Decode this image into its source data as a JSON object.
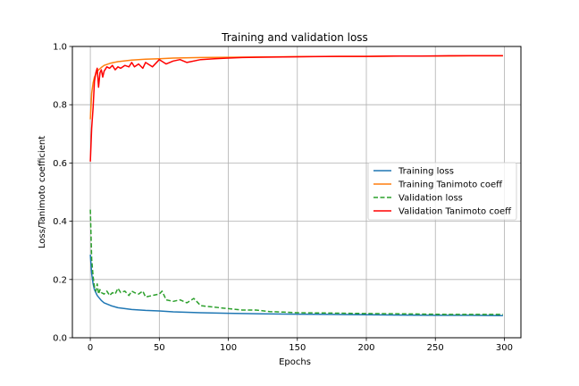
{
  "chart_data": {
    "type": "line",
    "title": "Training and validation loss",
    "xlabel": "Epochs",
    "ylabel": "Loss/Tanimoto coefficient",
    "xlim": [
      -13,
      312
    ],
    "ylim": [
      0.0,
      1.0
    ],
    "xticks": [
      0,
      50,
      100,
      150,
      200,
      250,
      300
    ],
    "yticks": [
      0.0,
      0.2,
      0.4,
      0.6,
      0.8,
      1.0
    ],
    "grid": true,
    "legend_position": "center-right",
    "series": [
      {
        "name": "Training loss",
        "color": "#1f77b4",
        "style": "solid",
        "x": [
          0,
          1,
          2,
          3,
          5,
          8,
          10,
          15,
          20,
          30,
          40,
          50,
          60,
          80,
          100,
          125,
          150,
          175,
          200,
          225,
          250,
          275,
          299
        ],
        "y": [
          0.285,
          0.22,
          0.185,
          0.165,
          0.145,
          0.128,
          0.12,
          0.11,
          0.103,
          0.097,
          0.094,
          0.092,
          0.089,
          0.086,
          0.084,
          0.082,
          0.081,
          0.08,
          0.079,
          0.078,
          0.077,
          0.077,
          0.076
        ]
      },
      {
        "name": "Training Tanimoto coeff",
        "color": "#ff7f0e",
        "style": "solid",
        "x": [
          0,
          1,
          2,
          3,
          5,
          8,
          10,
          15,
          20,
          30,
          40,
          50,
          60,
          80,
          100,
          125,
          150,
          175,
          200,
          225,
          250,
          275,
          299
        ],
        "y": [
          0.75,
          0.84,
          0.875,
          0.895,
          0.915,
          0.928,
          0.935,
          0.943,
          0.948,
          0.953,
          0.956,
          0.958,
          0.96,
          0.962,
          0.963,
          0.964,
          0.965,
          0.966,
          0.966,
          0.967,
          0.967,
          0.968,
          0.968
        ]
      },
      {
        "name": "Validation loss",
        "color": "#2ca02c",
        "style": "dashed",
        "x": [
          0,
          1,
          2,
          3,
          4,
          5,
          6,
          7,
          8,
          10,
          12,
          14,
          16,
          18,
          20,
          22,
          25,
          28,
          30,
          32,
          35,
          38,
          40,
          45,
          50,
          52,
          55,
          60,
          65,
          70,
          75,
          80,
          90,
          100,
          110,
          120,
          130,
          140,
          150,
          170,
          200,
          230,
          260,
          299
        ],
        "y": [
          0.44,
          0.27,
          0.21,
          0.175,
          0.16,
          0.185,
          0.15,
          0.165,
          0.155,
          0.15,
          0.16,
          0.145,
          0.155,
          0.15,
          0.17,
          0.155,
          0.16,
          0.145,
          0.16,
          0.155,
          0.15,
          0.16,
          0.14,
          0.145,
          0.15,
          0.16,
          0.13,
          0.125,
          0.13,
          0.12,
          0.135,
          0.11,
          0.105,
          0.1,
          0.095,
          0.095,
          0.09,
          0.088,
          0.086,
          0.085,
          0.083,
          0.082,
          0.08,
          0.08
        ]
      },
      {
        "name": "Validation Tanimoto coeff",
        "color": "#ff0000",
        "style": "solid",
        "x": [
          0,
          1,
          2,
          3,
          4,
          5,
          6,
          7,
          8,
          9,
          10,
          12,
          14,
          16,
          18,
          20,
          22,
          25,
          28,
          30,
          32,
          35,
          38,
          40,
          45,
          50,
          55,
          60,
          65,
          70,
          80,
          90,
          100,
          110,
          120,
          140,
          160,
          180,
          200,
          220,
          240,
          260,
          280,
          299
        ],
        "y": [
          0.605,
          0.72,
          0.79,
          0.88,
          0.91,
          0.925,
          0.86,
          0.91,
          0.92,
          0.895,
          0.915,
          0.93,
          0.925,
          0.935,
          0.92,
          0.93,
          0.925,
          0.935,
          0.93,
          0.945,
          0.93,
          0.94,
          0.925,
          0.945,
          0.93,
          0.955,
          0.94,
          0.95,
          0.955,
          0.945,
          0.955,
          0.958,
          0.96,
          0.962,
          0.963,
          0.964,
          0.965,
          0.966,
          0.966,
          0.967,
          0.967,
          0.968,
          0.968,
          0.968
        ]
      }
    ]
  }
}
